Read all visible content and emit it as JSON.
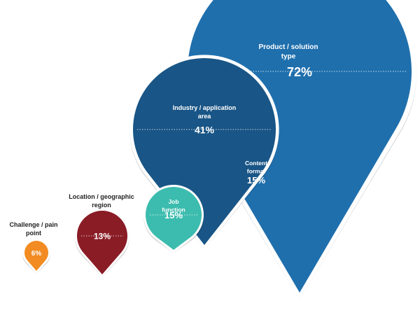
{
  "chart_data": {
    "type": "bubble-pins",
    "series": [
      {
        "label": "Product / solution type",
        "value": 72,
        "display": "72%",
        "color": "#1f6fad"
      },
      {
        "label": "Industry / application area",
        "value": 41,
        "display": "41%",
        "color": "#195586"
      },
      {
        "label": "Content format",
        "value": 15,
        "display": "15%",
        "color": "#8a8fcf"
      },
      {
        "label": "Job function",
        "value": 15,
        "display": "15%",
        "color": "#3cbcae"
      },
      {
        "label": "Location / geographic region",
        "value": 13,
        "display": "13%",
        "color": "#8a1c26"
      },
      {
        "label": "Challenge / pain point",
        "value": 6,
        "display": "6%",
        "color": "#f28b22"
      }
    ]
  }
}
